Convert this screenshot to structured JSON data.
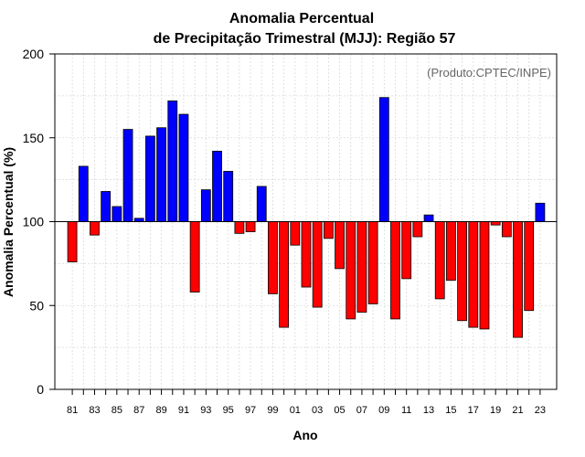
{
  "chart_data": {
    "type": "bar",
    "title_line1": "Anomalia Percentual",
    "title_line2": "de Precipitação Trimestral (MJJ): Região 57",
    "xlabel": "Ano",
    "ylabel": "Anomalia Percentual (%)",
    "credit": "(Produto:CPTEC/INPE)",
    "ylim": [
      0,
      200
    ],
    "yticks": [
      "0",
      "50",
      "100",
      "150",
      "200"
    ],
    "baseline": 100,
    "colors": {
      "above": "#0000ff",
      "below": "#ff0000"
    },
    "categories": [
      "81",
      "82",
      "83",
      "84",
      "85",
      "86",
      "87",
      "88",
      "89",
      "90",
      "91",
      "92",
      "93",
      "94",
      "95",
      "96",
      "97",
      "98",
      "99",
      "00",
      "01",
      "02",
      "03",
      "04",
      "05",
      "06",
      "07",
      "08",
      "09",
      "10",
      "11",
      "12",
      "13",
      "14",
      "15",
      "16",
      "17",
      "18",
      "19",
      "20",
      "21",
      "22",
      "23"
    ],
    "xtick_labels": [
      "81",
      "",
      "83",
      "",
      "85",
      "",
      "87",
      "",
      "89",
      "",
      "91",
      "",
      "93",
      "",
      "95",
      "",
      "97",
      "",
      "99",
      "",
      "01",
      "",
      "03",
      "",
      "05",
      "",
      "07",
      "",
      "09",
      "",
      "11",
      "",
      "13",
      "",
      "15",
      "",
      "17",
      "",
      "19",
      "",
      "21",
      "",
      "23"
    ],
    "values": [
      76,
      133,
      92,
      118,
      109,
      155,
      102,
      151,
      156,
      172,
      164,
      58,
      119,
      142,
      130,
      93,
      94,
      121,
      57,
      37,
      86,
      61,
      49,
      90,
      72,
      42,
      46,
      51,
      174,
      42,
      66,
      91,
      104,
      54,
      65,
      41,
      37,
      36,
      98,
      91,
      31,
      47,
      111
    ]
  }
}
